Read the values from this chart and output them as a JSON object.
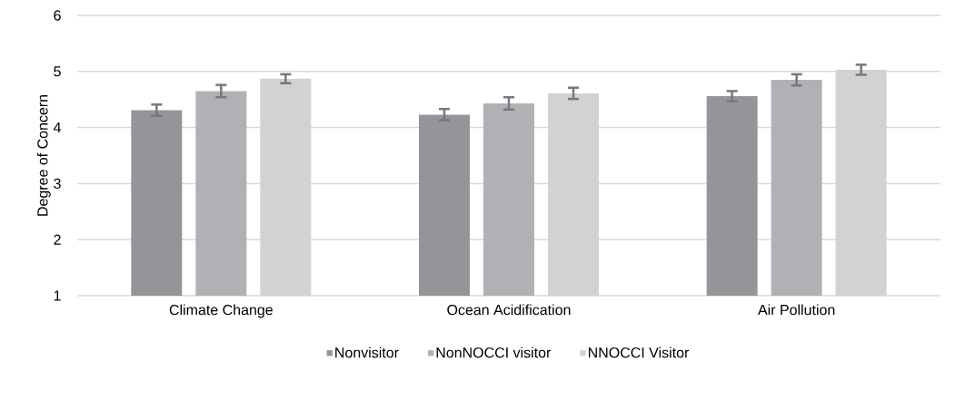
{
  "chart_data": {
    "type": "bar",
    "ylabel": "Degree of Concern",
    "categories": [
      "Climate Change",
      "Ocean Acidification",
      "Air Pollution"
    ],
    "series": [
      {
        "name": "Nonvisitor",
        "color": "#939598",
        "values": [
          4.31,
          4.23,
          4.56
        ],
        "errors": [
          0.1,
          0.1,
          0.09
        ]
      },
      {
        "name": "NonNOCCI visitor",
        "color": "#b0b1b4",
        "values": [
          4.65,
          4.43,
          4.85
        ],
        "errors": [
          0.11,
          0.11,
          0.1
        ]
      },
      {
        "name": "NNOCCI Visitor",
        "color": "#d1d2d4",
        "values": [
          4.87,
          4.61,
          5.03
        ],
        "errors": [
          0.08,
          0.1,
          0.09
        ]
      }
    ],
    "ylim": [
      1,
      6
    ],
    "yticks": [
      1,
      2,
      3,
      4,
      5,
      6
    ],
    "grid": "y",
    "legend": "bottom"
  }
}
